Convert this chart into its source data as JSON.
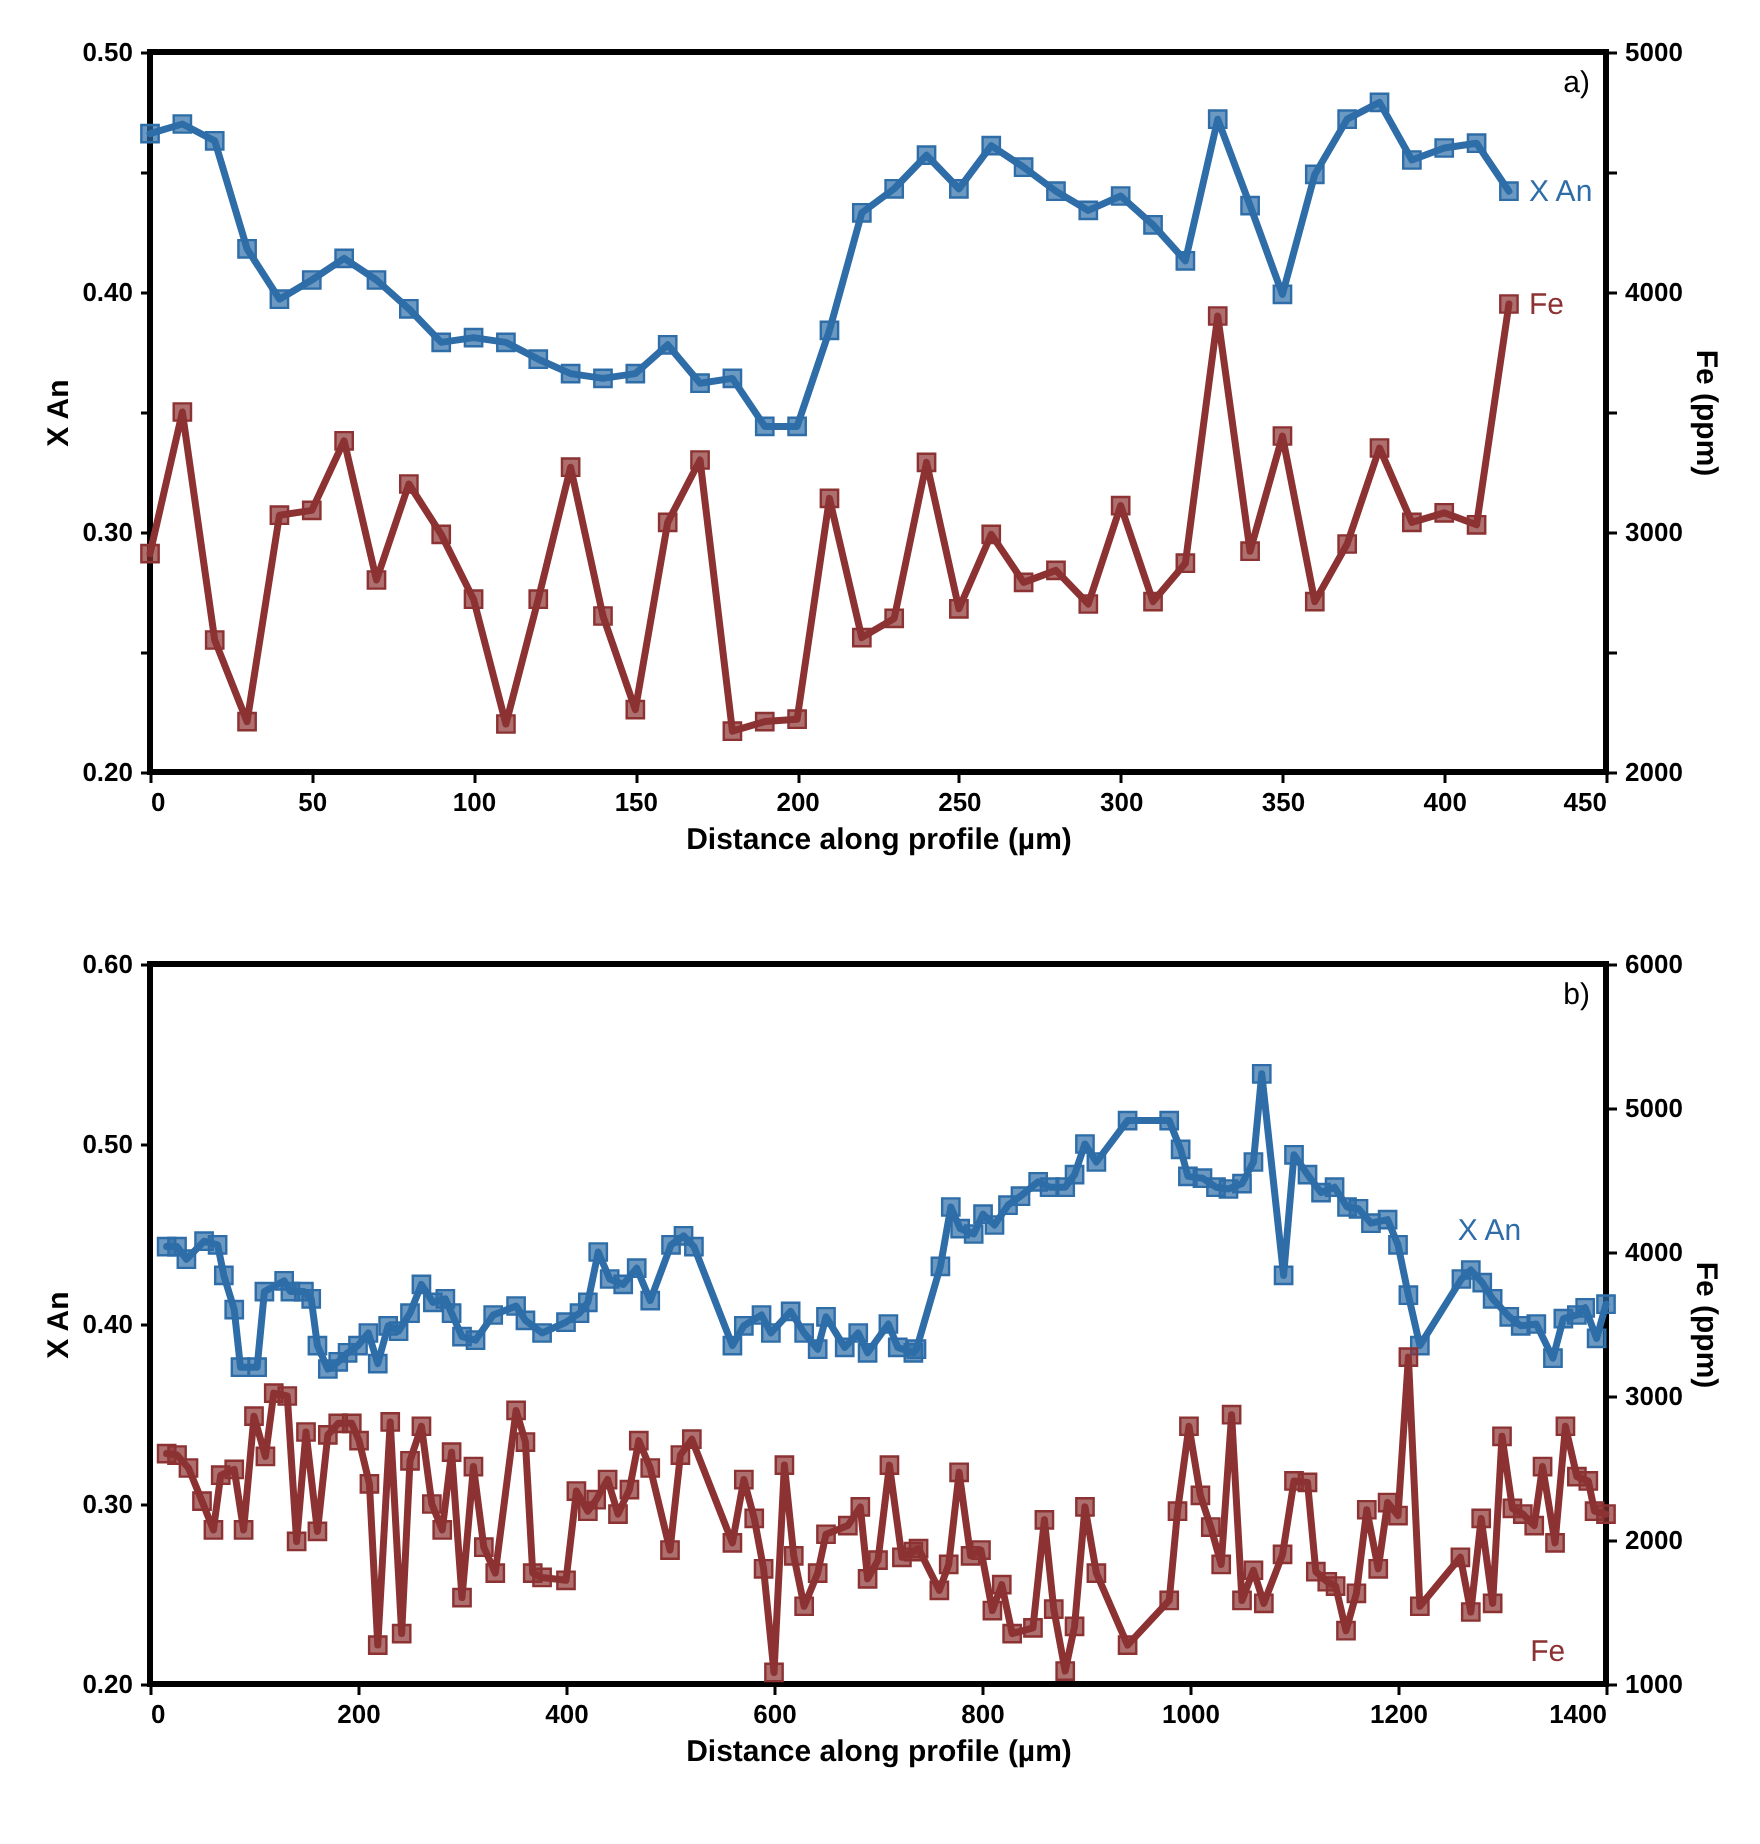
{
  "chart_data": [
    {
      "type": "line",
      "xlabel": "Distance along profile (µm)",
      "ylabel": "X An",
      "y2label": "Fe (ppm)",
      "annotations": [
        "a)"
      ],
      "marker": "square",
      "line_style": "solid",
      "legend": false,
      "grid": false,
      "xlim": [
        0,
        450
      ],
      "xticks": [
        0,
        50,
        100,
        150,
        200,
        250,
        300,
        350,
        400,
        450
      ],
      "ylim": [
        0.2,
        0.5
      ],
      "yticks": [
        {
          "value": 0.2,
          "label": "0.20"
        },
        {
          "value": 0.25,
          "label": null
        },
        {
          "value": 0.3,
          "label": "0.30"
        },
        {
          "value": 0.35,
          "label": null
        },
        {
          "value": 0.4,
          "label": "0.40"
        },
        {
          "value": 0.45,
          "label": null
        },
        {
          "value": 0.5,
          "label": "0.50"
        }
      ],
      "y2lim": [
        2000,
        5000
      ],
      "y2ticks": [
        2000,
        {
          "value": 2500,
          "label": null
        },
        3000,
        {
          "value": 3500,
          "label": null
        },
        4000,
        {
          "value": 4500,
          "label": null
        },
        5000
      ],
      "x": [
        0,
        10,
        20,
        30,
        40,
        50,
        60,
        70,
        80,
        90,
        100,
        110,
        120,
        130,
        140,
        150,
        160,
        170,
        180,
        190,
        200,
        210,
        220,
        230,
        240,
        250,
        260,
        270,
        280,
        290,
        300,
        310,
        320,
        330,
        340,
        350,
        360,
        370,
        380,
        390,
        400,
        410,
        420
      ],
      "series": [
        {
          "name": "X An",
          "color": "#2e6da8",
          "values": [
            0.466,
            0.47,
            0.463,
            0.418,
            0.397,
            0.405,
            0.414,
            0.405,
            0.393,
            0.379,
            0.381,
            0.379,
            0.372,
            0.366,
            0.364,
            0.366,
            0.378,
            0.362,
            0.364,
            0.344,
            0.344,
            0.384,
            0.433,
            0.443,
            0.457,
            0.443,
            0.461,
            0.452,
            0.442,
            0.434,
            0.44,
            0.428,
            0.413,
            0.472,
            0.436,
            0.399,
            0.449,
            0.472,
            0.479,
            0.455,
            0.46,
            0.462,
            0.442
          ]
        },
        {
          "name": "Fe",
          "color": "#8c3232",
          "axis": "y2",
          "values": [
            2910,
            3500,
            2550,
            2210,
            3070,
            3090,
            3380,
            2800,
            3200,
            2990,
            2720,
            2200,
            2720,
            3270,
            2650,
            2260,
            3040,
            3300,
            2170,
            2210,
            2220,
            3140,
            2560,
            2640,
            3290,
            2680,
            2990,
            2790,
            2840,
            2700,
            3110,
            2710,
            2870,
            3900,
            2920,
            3400,
            2710,
            2950,
            3350,
            3040,
            3080,
            3030,
            3950
          ]
        }
      ]
    },
    {
      "type": "line",
      "xlabel": "Distance along profile (µm)",
      "ylabel": "X An",
      "y2label": "Fe (ppm)",
      "annotations": [
        "b)"
      ],
      "marker": "square",
      "line_style": "solid",
      "legend": false,
      "grid": false,
      "xlim": [
        0,
        1400
      ],
      "xticks": [
        0,
        200,
        400,
        600,
        800,
        1000,
        1200,
        1400
      ],
      "ylim": [
        0.2,
        0.6
      ],
      "yticks": [
        {
          "value": 0.2,
          "label": "0.20"
        },
        {
          "value": 0.3,
          "label": "0.30"
        },
        {
          "value": 0.4,
          "label": "0.40"
        },
        {
          "value": 0.5,
          "label": "0.50"
        },
        {
          "value": 0.6,
          "label": "0.60"
        }
      ],
      "y2lim": [
        1000,
        6000
      ],
      "y2ticks": [
        1000,
        2000,
        3000,
        4000,
        5000,
        6000
      ],
      "series": [
        {
          "name": "X An",
          "color": "#2e6da8",
          "x": [
            16,
            26,
            35,
            52,
            65,
            71,
            81,
            87,
            103,
            110,
            129,
            135,
            148,
            155,
            161,
            171,
            181,
            190,
            200,
            210,
            219,
            229,
            239,
            250,
            261,
            272,
            284,
            290,
            300,
            313,
            330,
            352,
            361,
            377,
            400,
            413,
            421,
            431,
            442,
            455,
            468,
            481,
            501,
            513,
            523,
            560,
            571,
            588,
            597,
            616,
            629,
            642,
            650,
            668,
            681,
            690,
            710,
            719,
            734,
            737,
            760,
            770,
            779,
            792,
            801,
            812,
            825,
            837,
            854,
            865,
            880,
            889,
            899,
            910,
            940,
            980,
            991,
            998,
            1012,
            1025,
            1037,
            1050,
            1061,
            1069,
            1090,
            1100,
            1113,
            1126,
            1139,
            1151,
            1162,
            1174,
            1190,
            1200,
            1210,
            1221,
            1261,
            1270,
            1281,
            1291,
            1307,
            1318,
            1333,
            1349,
            1359,
            1372,
            1380,
            1391,
            1400
          ],
          "values": [
            0.443,
            0.443,
            0.436,
            0.446,
            0.444,
            0.427,
            0.408,
            0.376,
            0.376,
            0.418,
            0.424,
            0.418,
            0.418,
            0.414,
            0.388,
            0.375,
            0.379,
            0.384,
            0.388,
            0.395,
            0.378,
            0.399,
            0.396,
            0.406,
            0.422,
            0.412,
            0.414,
            0.406,
            0.393,
            0.391,
            0.405,
            0.41,
            0.402,
            0.395,
            0.401,
            0.406,
            0.412,
            0.44,
            0.425,
            0.422,
            0.431,
            0.413,
            0.444,
            0.449,
            0.443,
            0.388,
            0.399,
            0.405,
            0.395,
            0.407,
            0.395,
            0.386,
            0.404,
            0.387,
            0.395,
            0.384,
            0.4,
            0.387,
            0.384,
            0.386,
            0.432,
            0.465,
            0.453,
            0.45,
            0.461,
            0.455,
            0.466,
            0.471,
            0.479,
            0.476,
            0.476,
            0.483,
            0.5,
            0.49,
            0.513,
            0.513,
            0.497,
            0.482,
            0.481,
            0.476,
            0.475,
            0.478,
            0.49,
            0.539,
            0.427,
            0.494,
            0.483,
            0.473,
            0.476,
            0.465,
            0.464,
            0.456,
            0.458,
            0.444,
            0.416,
            0.388,
            0.425,
            0.43,
            0.423,
            0.414,
            0.404,
            0.399,
            0.4,
            0.381,
            0.403,
            0.405,
            0.409,
            0.392,
            0.411
          ]
        },
        {
          "name": "Fe",
          "color": "#8c3232",
          "axis": "y2",
          "x": [
            16,
            26,
            37,
            50,
            61,
            68,
            81,
            90,
            100,
            111,
            119,
            132,
            141,
            150,
            161,
            171,
            181,
            194,
            201,
            211,
            219,
            231,
            242,
            250,
            261,
            271,
            281,
            290,
            300,
            311,
            321,
            332,
            352,
            361,
            368,
            377,
            400,
            410,
            421,
            429,
            440,
            450,
            461,
            470,
            481,
            500,
            510,
            521,
            560,
            571,
            581,
            590,
            600,
            610,
            619,
            629,
            642,
            650,
            671,
            683,
            690,
            700,
            711,
            723,
            734,
            739,
            759,
            768,
            778,
            789,
            799,
            810,
            819,
            829,
            849,
            860,
            869,
            880,
            889,
            899,
            910,
            940,
            980,
            988,
            999,
            1010,
            1020,
            1030,
            1040,
            1050,
            1061,
            1071,
            1089,
            1100,
            1113,
            1121,
            1132,
            1140,
            1150,
            1160,
            1170,
            1181,
            1190,
            1200,
            1210,
            1221,
            1260,
            1270,
            1280,
            1291,
            1300,
            1310,
            1320,
            1331,
            1339,
            1351,
            1361,
            1372,
            1383,
            1389,
            1400
          ],
          "values": [
            2600,
            2590,
            2500,
            2270,
            2070,
            2450,
            2490,
            2070,
            2860,
            2580,
            3020,
            3000,
            1990,
            2750,
            2060,
            2730,
            2810,
            2810,
            2690,
            2390,
            1270,
            2820,
            1350,
            2550,
            2790,
            2250,
            2070,
            2610,
            1600,
            2510,
            1950,
            1770,
            2900,
            2680,
            1770,
            1740,
            1720,
            2340,
            2200,
            2280,
            2420,
            2180,
            2350,
            2690,
            2500,
            1930,
            2590,
            2700,
            1980,
            2420,
            2150,
            1800,
            1080,
            2520,
            1890,
            1540,
            1770,
            2040,
            2100,
            2230,
            1730,
            1860,
            2520,
            1880,
            1920,
            1940,
            1650,
            1830,
            2470,
            1890,
            1930,
            1510,
            1690,
            1350,
            1390,
            2140,
            1520,
            1090,
            1400,
            2230,
            1770,
            1270,
            1580,
            2200,
            2790,
            2310,
            2090,
            1830,
            2870,
            1580,
            1790,
            1560,
            1900,
            2410,
            2400,
            1780,
            1710,
            1680,
            1370,
            1630,
            2210,
            1800,
            2260,
            2170,
            3270,
            1540,
            1880,
            1500,
            2150,
            1560,
            2720,
            2220,
            2180,
            2100,
            2510,
            1980,
            2790,
            2440,
            2410,
            2200,
            2180
          ]
        }
      ]
    }
  ]
}
